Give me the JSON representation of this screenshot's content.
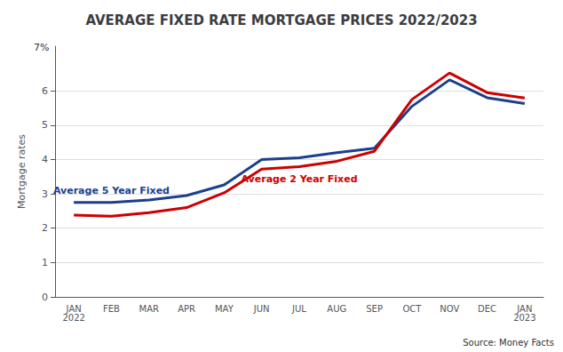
{
  "chart_data": {
    "type": "line",
    "title": "AVERAGE FIXED RATE MORTGAGE PRICES 2022/2023",
    "y_label": "Mortgage rates",
    "categories": [
      "JAN\n2022",
      "FEB",
      "MAR",
      "APR",
      "MAY",
      "JUN",
      "JUL",
      "AUG",
      "SEP",
      "OCT",
      "NOV",
      "DEC",
      "JAN\n2023"
    ],
    "series": [
      {
        "name": "Average 5 Year Fixed",
        "color": "#1c3f8c",
        "values": [
          2.75,
          2.75,
          2.82,
          2.95,
          3.26,
          4.0,
          4.05,
          4.2,
          4.33,
          5.55,
          6.32,
          5.8,
          5.63
        ]
      },
      {
        "name": "Average 2 Year Fixed",
        "color": "#cc0000",
        "values": [
          2.38,
          2.35,
          2.45,
          2.6,
          3.03,
          3.72,
          3.79,
          3.95,
          4.24,
          5.75,
          6.52,
          5.95,
          5.79
        ]
      }
    ],
    "ylim": [
      0,
      7.3
    ],
    "yticks": [
      0,
      1,
      2,
      3,
      4,
      5,
      6
    ],
    "grid": true,
    "annotations": [
      "7%",
      "Source: Money Facts"
    ]
  }
}
